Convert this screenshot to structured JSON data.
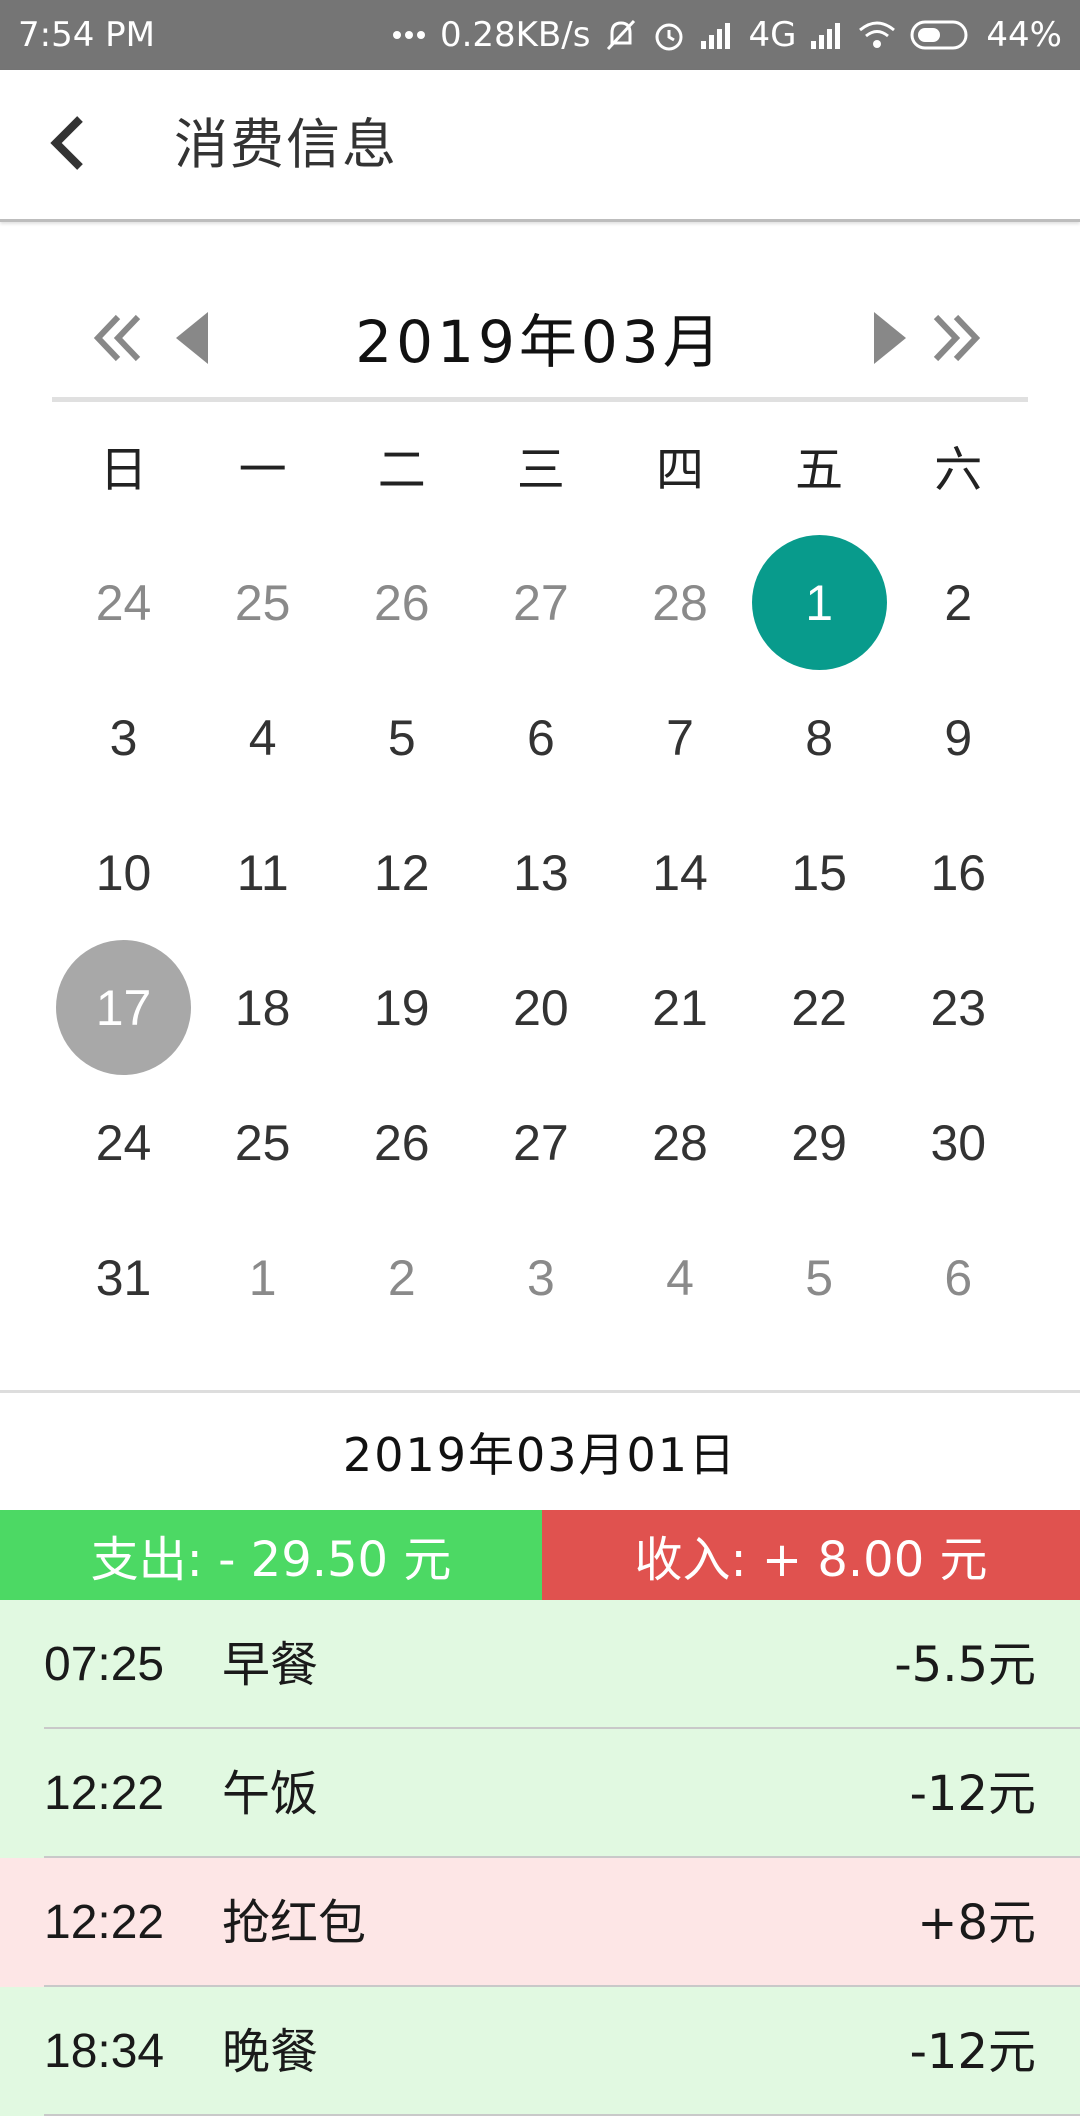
{
  "status_bar": {
    "time": "7:54 PM",
    "network_speed": "0.28KB/s",
    "network_type": "4G",
    "battery": "44%",
    "icons": [
      "more-dots-icon",
      "silent-bell-icon",
      "alarm-icon",
      "signal-icon",
      "signal-icon",
      "wifi-icon",
      "battery-icon"
    ]
  },
  "app_bar": {
    "title": "消费信息",
    "back_icon": "chevron-left-icon"
  },
  "calendar": {
    "title": "2019年03月",
    "nav_icons": [
      "double-left-icon",
      "triangle-left-icon",
      "triangle-right-icon",
      "double-right-icon"
    ],
    "weekdays": [
      "日",
      "一",
      "二",
      "三",
      "四",
      "五",
      "六"
    ],
    "selected_color": "#089b8c",
    "today_color": "#a8a8a8",
    "weeks": [
      [
        {
          "d": "24",
          "s": "other"
        },
        {
          "d": "25",
          "s": "other"
        },
        {
          "d": "26",
          "s": "other"
        },
        {
          "d": "27",
          "s": "other"
        },
        {
          "d": "28",
          "s": "other"
        },
        {
          "d": "1",
          "s": "selected"
        },
        {
          "d": "2",
          "s": ""
        }
      ],
      [
        {
          "d": "3",
          "s": ""
        },
        {
          "d": "4",
          "s": ""
        },
        {
          "d": "5",
          "s": ""
        },
        {
          "d": "6",
          "s": ""
        },
        {
          "d": "7",
          "s": ""
        },
        {
          "d": "8",
          "s": ""
        },
        {
          "d": "9",
          "s": ""
        }
      ],
      [
        {
          "d": "10",
          "s": ""
        },
        {
          "d": "11",
          "s": ""
        },
        {
          "d": "12",
          "s": ""
        },
        {
          "d": "13",
          "s": ""
        },
        {
          "d": "14",
          "s": ""
        },
        {
          "d": "15",
          "s": ""
        },
        {
          "d": "16",
          "s": ""
        }
      ],
      [
        {
          "d": "17",
          "s": "today"
        },
        {
          "d": "18",
          "s": ""
        },
        {
          "d": "19",
          "s": ""
        },
        {
          "d": "20",
          "s": ""
        },
        {
          "d": "21",
          "s": ""
        },
        {
          "d": "22",
          "s": ""
        },
        {
          "d": "23",
          "s": ""
        }
      ],
      [
        {
          "d": "24",
          "s": ""
        },
        {
          "d": "25",
          "s": ""
        },
        {
          "d": "26",
          "s": ""
        },
        {
          "d": "27",
          "s": ""
        },
        {
          "d": "28",
          "s": ""
        },
        {
          "d": "29",
          "s": ""
        },
        {
          "d": "30",
          "s": ""
        }
      ],
      [
        {
          "d": "31",
          "s": ""
        },
        {
          "d": "1",
          "s": "other"
        },
        {
          "d": "2",
          "s": "other"
        },
        {
          "d": "3",
          "s": "other"
        },
        {
          "d": "4",
          "s": "other"
        },
        {
          "d": "5",
          "s": "other"
        },
        {
          "d": "6",
          "s": "other"
        }
      ]
    ]
  },
  "selected_date": "2019年03月01日",
  "summary": {
    "expense_label": "支出: - 29.50 元",
    "income_label": "收入: + 8.00 元",
    "expense_color": "#4cd964",
    "income_color": "#e0524f"
  },
  "transactions": [
    {
      "time": "07:25",
      "name": "早餐",
      "amount": "-5.5元",
      "type": "expense"
    },
    {
      "time": "12:22",
      "name": "午饭",
      "amount": "-12元",
      "type": "expense"
    },
    {
      "time": "12:22",
      "name": "抢红包",
      "amount": "+8元",
      "type": "income"
    },
    {
      "time": "18:34",
      "name": "晚餐",
      "amount": "-12元",
      "type": "expense"
    }
  ]
}
